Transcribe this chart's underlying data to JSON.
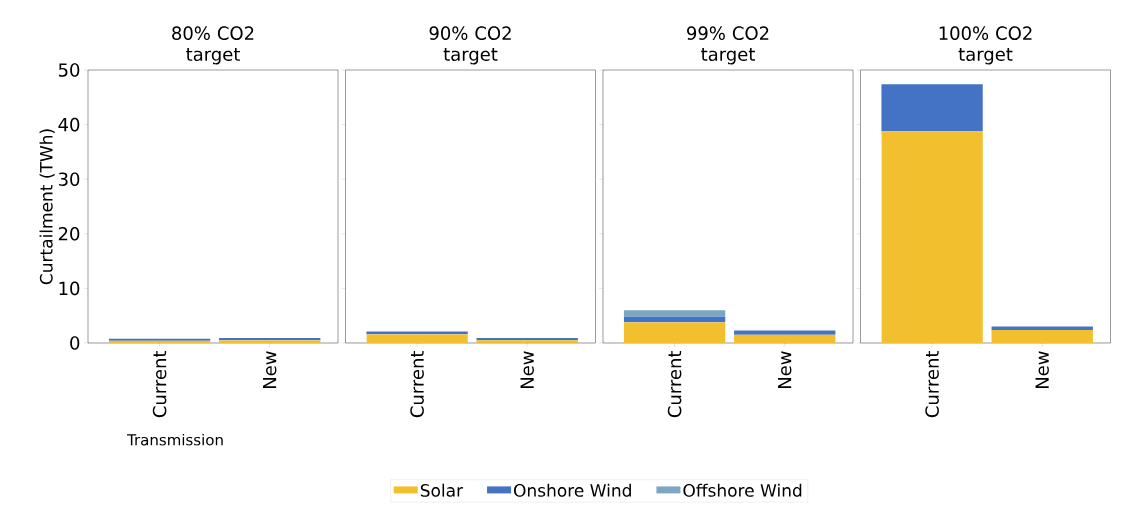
{
  "chart_data": [
    {
      "type": "bar",
      "stacked": true,
      "title": "80% CO2 target",
      "ylabel": "Curtailment (TWh)",
      "xlabel": "Transmission",
      "categories": [
        "Current",
        "New"
      ],
      "ylim": [
        0,
        50
      ],
      "yticks": [
        0,
        10,
        20,
        30,
        40,
        50
      ],
      "legend": "bottom",
      "grid": false,
      "series": [
        {
          "name": "Solar",
          "color": "#f2bf2e",
          "values": [
            0.4,
            0.5
          ]
        },
        {
          "name": "Onshore Wind",
          "color": "#4472c4",
          "values": [
            0.4,
            0.4
          ]
        },
        {
          "name": "Offshore Wind",
          "color": "#7ba7c0",
          "values": [
            0,
            0
          ]
        }
      ]
    },
    {
      "type": "bar",
      "stacked": true,
      "title": "90% CO2 target",
      "categories": [
        "Current",
        "New"
      ],
      "ylim": [
        0,
        50
      ],
      "yticks": [
        0,
        10,
        20,
        30,
        40,
        50
      ],
      "tick_labels": "x",
      "grid": false,
      "series": [
        {
          "color": "#f2bf2e",
          "values": [
            1.6,
            0.5
          ]
        },
        {
          "color": "#4472c4",
          "values": [
            0.5,
            0.4
          ]
        },
        {
          "color": "#7ba7c0",
          "values": [
            0,
            0
          ]
        }
      ]
    },
    {
      "type": "bar",
      "stacked": true,
      "title": "99% CO2 target",
      "categories": [
        "Current",
        "New"
      ],
      "ylim": [
        0,
        50
      ],
      "yticks": [
        0,
        10,
        20,
        30,
        40,
        50
      ],
      "tick_labels": "x",
      "grid": false,
      "series": [
        {
          "color": "#f2bf2e",
          "values": [
            3.8,
            1.5
          ]
        },
        {
          "color": "#4472c4",
          "values": [
            1.0,
            0.8
          ]
        },
        {
          "color": "#7ba7c0",
          "values": [
            1.2,
            0
          ]
        }
      ]
    },
    {
      "type": "bar",
      "stacked": true,
      "title": "100% CO2 target",
      "categories": [
        "Current",
        "New"
      ],
      "ylim": [
        0,
        50
      ],
      "yticks": [
        0,
        10,
        20,
        30,
        40,
        50
      ],
      "tick_labels": "x",
      "grid": false,
      "series": [
        {
          "color": "#f2bf2e",
          "values": [
            38.8,
            2.4
          ]
        },
        {
          "color": "#4472c4",
          "values": [
            8.6,
            0.6
          ]
        },
        {
          "color": "#7ba7c0",
          "values": [
            0,
            0
          ]
        }
      ]
    }
  ]
}
